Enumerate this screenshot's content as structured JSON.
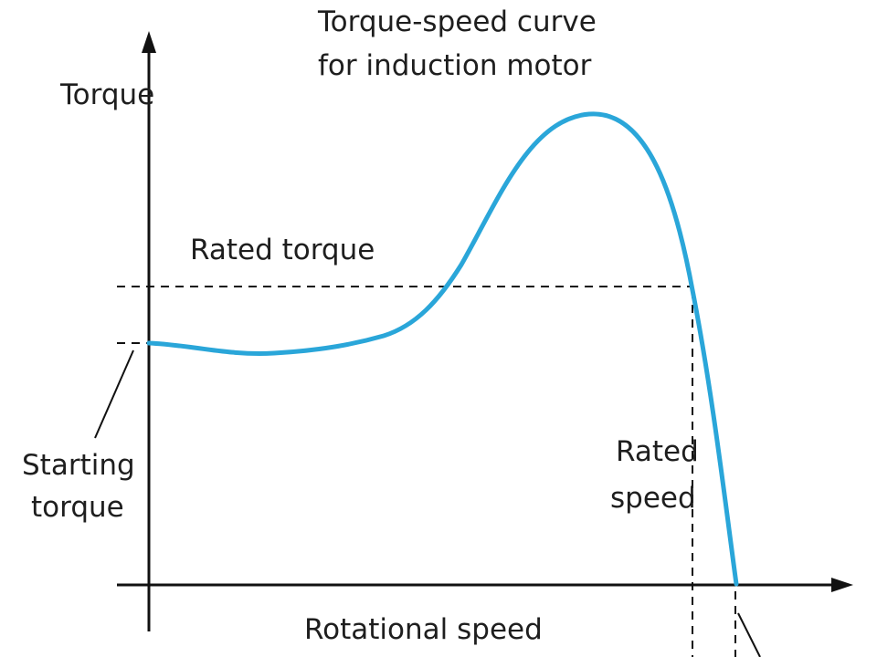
{
  "title_line1": "Torque-speed curve",
  "title_line2": "for induction motor",
  "y_axis_label": "Torque",
  "x_axis_label": "Rotational speed",
  "rated_torque_label": "Rated torque",
  "starting_torque_line1": "Starting",
  "starting_torque_line2": "torque",
  "rated_speed_line1": "Rated",
  "rated_speed_line2": "speed",
  "colors": {
    "curve": "#2aa6d9",
    "lines": "#111111",
    "text": "#1e1e1e"
  }
}
